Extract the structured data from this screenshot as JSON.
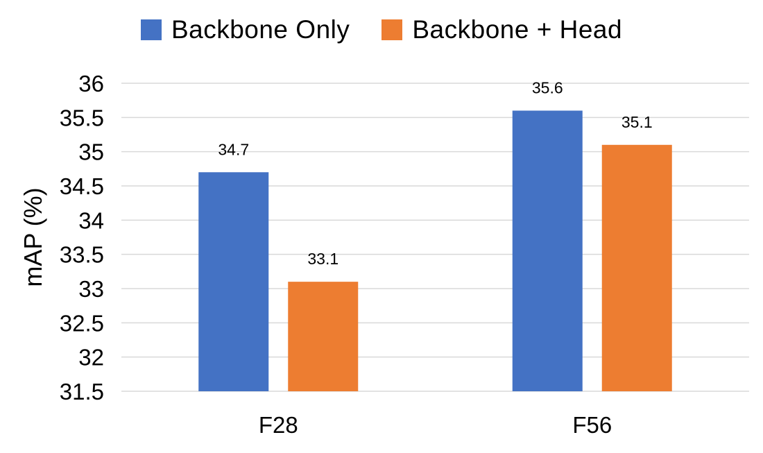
{
  "chart_data": {
    "type": "bar",
    "categories": [
      "F28",
      "F56"
    ],
    "series": [
      {
        "name": "Backbone Only",
        "values": [
          34.7,
          35.6
        ],
        "color": "#4472C4"
      },
      {
        "name": "Backbone + Head",
        "values": [
          33.1,
          35.1
        ],
        "color": "#ED7D31"
      }
    ],
    "data_labels": [
      [
        "34.7",
        "35.6"
      ],
      [
        "33.1",
        "35.1"
      ]
    ],
    "ylabel": "mAP (%)",
    "xlabel": "",
    "ylim": [
      31.5,
      36
    ],
    "yticks": [
      "31.5",
      "32",
      "32.5",
      "33",
      "33.5",
      "34",
      "34.5",
      "35",
      "35.5",
      "36"
    ],
    "grid": true,
    "gridline_color": "#D9D9D9",
    "legend_position": "top"
  }
}
